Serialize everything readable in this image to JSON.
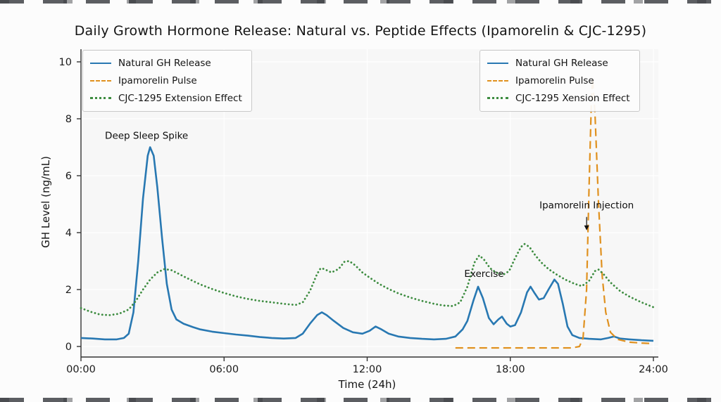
{
  "chart_data": {
    "type": "line",
    "title": "Daily Growth Hormone Release: Natural vs. Peptide Effects (Ipamorelin & CJC-1295)",
    "xlabel": "Time (24h)",
    "ylabel": "GH Level (ng/mL)",
    "xlim": [
      0,
      24
    ],
    "ylim": [
      0,
      10
    ],
    "grid": true,
    "xticks": {
      "values": [
        0,
        6,
        12,
        18,
        24
      ],
      "labels": [
        "00:00",
        "06:00",
        "12:00",
        "18:00",
        "24:00"
      ]
    },
    "yticks": {
      "values": [
        0,
        2,
        4,
        6,
        8,
        10
      ],
      "labels": [
        "0",
        "2",
        "4",
        "6",
        "8",
        "10"
      ]
    },
    "series": [
      {
        "name": "Natural GH Release",
        "color": "#2878b2",
        "style": "solid",
        "width": 2.6,
        "points": [
          [
            0,
            0.3
          ],
          [
            0.5,
            0.28
          ],
          [
            1.0,
            0.25
          ],
          [
            1.5,
            0.25
          ],
          [
            1.8,
            0.3
          ],
          [
            2.0,
            0.45
          ],
          [
            2.2,
            1.2
          ],
          [
            2.4,
            3.0
          ],
          [
            2.6,
            5.2
          ],
          [
            2.8,
            6.7
          ],
          [
            2.9,
            7.0
          ],
          [
            3.05,
            6.7
          ],
          [
            3.2,
            5.6
          ],
          [
            3.4,
            3.8
          ],
          [
            3.6,
            2.2
          ],
          [
            3.8,
            1.3
          ],
          [
            4.0,
            0.95
          ],
          [
            4.3,
            0.8
          ],
          [
            4.7,
            0.68
          ],
          [
            5.0,
            0.6
          ],
          [
            5.5,
            0.52
          ],
          [
            6.0,
            0.47
          ],
          [
            6.5,
            0.42
          ],
          [
            7.0,
            0.38
          ],
          [
            7.5,
            0.33
          ],
          [
            8.0,
            0.3
          ],
          [
            8.5,
            0.28
          ],
          [
            9.0,
            0.3
          ],
          [
            9.3,
            0.45
          ],
          [
            9.6,
            0.8
          ],
          [
            9.9,
            1.1
          ],
          [
            10.1,
            1.2
          ],
          [
            10.3,
            1.1
          ],
          [
            10.6,
            0.9
          ],
          [
            11.0,
            0.65
          ],
          [
            11.4,
            0.5
          ],
          [
            11.8,
            0.45
          ],
          [
            12.1,
            0.55
          ],
          [
            12.35,
            0.7
          ],
          [
            12.6,
            0.6
          ],
          [
            12.9,
            0.45
          ],
          [
            13.3,
            0.35
          ],
          [
            13.8,
            0.3
          ],
          [
            14.3,
            0.27
          ],
          [
            14.8,
            0.25
          ],
          [
            15.3,
            0.27
          ],
          [
            15.7,
            0.35
          ],
          [
            16.0,
            0.6
          ],
          [
            16.2,
            0.9
          ],
          [
            16.45,
            1.6
          ],
          [
            16.65,
            2.1
          ],
          [
            16.85,
            1.7
          ],
          [
            17.1,
            1.0
          ],
          [
            17.3,
            0.78
          ],
          [
            17.5,
            0.95
          ],
          [
            17.65,
            1.05
          ],
          [
            17.85,
            0.8
          ],
          [
            18.0,
            0.7
          ],
          [
            18.2,
            0.75
          ],
          [
            18.45,
            1.2
          ],
          [
            18.7,
            1.9
          ],
          [
            18.85,
            2.1
          ],
          [
            19.0,
            1.9
          ],
          [
            19.2,
            1.65
          ],
          [
            19.4,
            1.7
          ],
          [
            19.6,
            2.0
          ],
          [
            19.85,
            2.35
          ],
          [
            20.0,
            2.2
          ],
          [
            20.2,
            1.5
          ],
          [
            20.4,
            0.7
          ],
          [
            20.6,
            0.4
          ],
          [
            20.9,
            0.3
          ],
          [
            21.3,
            0.27
          ],
          [
            21.8,
            0.25
          ],
          [
            22.1,
            0.3
          ],
          [
            22.35,
            0.35
          ],
          [
            22.6,
            0.28
          ],
          [
            23.0,
            0.25
          ],
          [
            23.5,
            0.22
          ],
          [
            24,
            0.2
          ]
        ]
      },
      {
        "name": "Ipamorelin Pulse",
        "color": "#e0911f",
        "style": "dashed",
        "width": 2.2,
        "points": [
          [
            15.7,
            -0.05
          ],
          [
            17.0,
            -0.05
          ],
          [
            18.0,
            -0.05
          ],
          [
            19.0,
            -0.05
          ],
          [
            20.0,
            -0.05
          ],
          [
            20.6,
            -0.05
          ],
          [
            20.9,
            0.0
          ],
          [
            21.05,
            0.3
          ],
          [
            21.2,
            2.0
          ],
          [
            21.3,
            5.5
          ],
          [
            21.4,
            8.6
          ],
          [
            21.45,
            9.4
          ],
          [
            21.55,
            8.2
          ],
          [
            21.7,
            5.0
          ],
          [
            21.85,
            2.5
          ],
          [
            22.0,
            1.2
          ],
          [
            22.2,
            0.5
          ],
          [
            22.5,
            0.25
          ],
          [
            23.0,
            0.15
          ],
          [
            23.5,
            0.12
          ],
          [
            24,
            0.1
          ]
        ]
      },
      {
        "name": "CJC-1295 Extension Effect",
        "color": "#3d8c40",
        "style": "dotted",
        "width": 2.8,
        "points": [
          [
            0,
            1.35
          ],
          [
            0.4,
            1.22
          ],
          [
            0.8,
            1.12
          ],
          [
            1.2,
            1.1
          ],
          [
            1.6,
            1.15
          ],
          [
            2.0,
            1.3
          ],
          [
            2.3,
            1.6
          ],
          [
            2.6,
            2.0
          ],
          [
            2.9,
            2.35
          ],
          [
            3.2,
            2.6
          ],
          [
            3.5,
            2.72
          ],
          [
            3.8,
            2.68
          ],
          [
            4.1,
            2.55
          ],
          [
            4.5,
            2.38
          ],
          [
            5.0,
            2.18
          ],
          [
            5.5,
            2.02
          ],
          [
            6.0,
            1.88
          ],
          [
            6.5,
            1.76
          ],
          [
            7.0,
            1.67
          ],
          [
            7.5,
            1.6
          ],
          [
            8.0,
            1.55
          ],
          [
            8.5,
            1.5
          ],
          [
            9.0,
            1.46
          ],
          [
            9.3,
            1.55
          ],
          [
            9.6,
            1.95
          ],
          [
            9.9,
            2.55
          ],
          [
            10.05,
            2.75
          ],
          [
            10.2,
            2.72
          ],
          [
            10.5,
            2.6
          ],
          [
            10.8,
            2.72
          ],
          [
            11.05,
            2.98
          ],
          [
            11.25,
            3.0
          ],
          [
            11.5,
            2.85
          ],
          [
            11.8,
            2.6
          ],
          [
            12.1,
            2.42
          ],
          [
            12.5,
            2.2
          ],
          [
            12.9,
            2.02
          ],
          [
            13.3,
            1.87
          ],
          [
            13.8,
            1.72
          ],
          [
            14.3,
            1.6
          ],
          [
            14.8,
            1.5
          ],
          [
            15.2,
            1.44
          ],
          [
            15.6,
            1.42
          ],
          [
            15.9,
            1.55
          ],
          [
            16.2,
            2.1
          ],
          [
            16.5,
            2.95
          ],
          [
            16.7,
            3.2
          ],
          [
            16.9,
            3.05
          ],
          [
            17.15,
            2.75
          ],
          [
            17.4,
            2.6
          ],
          [
            17.7,
            2.52
          ],
          [
            17.95,
            2.65
          ],
          [
            18.2,
            3.1
          ],
          [
            18.45,
            3.5
          ],
          [
            18.6,
            3.6
          ],
          [
            18.8,
            3.5
          ],
          [
            19.05,
            3.2
          ],
          [
            19.3,
            2.95
          ],
          [
            19.6,
            2.72
          ],
          [
            19.9,
            2.55
          ],
          [
            20.3,
            2.35
          ],
          [
            20.7,
            2.2
          ],
          [
            21.0,
            2.12
          ],
          [
            21.3,
            2.3
          ],
          [
            21.55,
            2.65
          ],
          [
            21.7,
            2.7
          ],
          [
            21.9,
            2.55
          ],
          [
            22.2,
            2.25
          ],
          [
            22.6,
            1.95
          ],
          [
            23.0,
            1.75
          ],
          [
            23.5,
            1.55
          ],
          [
            24,
            1.38
          ]
        ]
      }
    ],
    "annotations": [
      {
        "text": "Deep Sleep Spike",
        "x": 2.75,
        "y": 7.3
      },
      {
        "text": "Exercise",
        "x": 16.9,
        "y": 2.45
      },
      {
        "text": "Ipamorelin Injection",
        "x": 21.2,
        "y": 4.85,
        "arrow": {
          "x": 21.2,
          "y1": 4.55,
          "y2": 4.08
        }
      }
    ],
    "legends": [
      {
        "position": "upper-left",
        "items": [
          "Natural GH Release",
          "Ipamorelin Pulse",
          "CJC-1295 Extension Effect"
        ]
      },
      {
        "position": "upper-right",
        "items": [
          "Natural GH Release",
          "Ipamorelin Pulse",
          "CJC-1295 Xension Effect"
        ]
      }
    ],
    "colors": {
      "natural": "#2878b2",
      "ipamorelin": "#e0911f",
      "cjc1295": "#3d8c40",
      "plot_bg": "#f7f7f7",
      "grid": "#ffffff"
    }
  }
}
